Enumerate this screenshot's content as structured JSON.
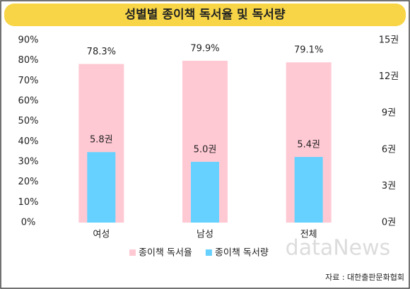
{
  "chart_data": {
    "type": "bar",
    "title": "성별별 종이책 독서율 및 독서량",
    "categories": [
      "여성",
      "남성",
      "전체"
    ],
    "series": [
      {
        "name": "종이책 독서율",
        "color": "#ffc9d4",
        "values": [
          78.3,
          79.9,
          79.1
        ],
        "value_labels": [
          "78.3%",
          "79.9%",
          "79.1%"
        ]
      },
      {
        "name": "종이책 독서량",
        "color": "#66d1ff",
        "axis": "y2",
        "values": [
          5.8,
          5.0,
          5.4
        ],
        "value_labels": [
          "5.8권",
          "5.0권",
          "5.4권"
        ]
      }
    ],
    "ylim": [
      0,
      90
    ],
    "yticks": [
      {
        "value": 0,
        "label": "0%"
      },
      {
        "value": 10,
        "label": "10%"
      },
      {
        "value": 20,
        "label": "20%"
      },
      {
        "value": 30,
        "label": "30%"
      },
      {
        "value": 40,
        "label": "40%"
      },
      {
        "value": 50,
        "label": "50%"
      },
      {
        "value": 60,
        "label": "60%"
      },
      {
        "value": 70,
        "label": "70%"
      },
      {
        "value": 80,
        "label": "80%"
      },
      {
        "value": 90,
        "label": "90%"
      }
    ],
    "y2lim": [
      0,
      15
    ],
    "y2ticks": [
      {
        "value": 0,
        "label": "0권"
      },
      {
        "value": 3,
        "label": "3권"
      },
      {
        "value": 6,
        "label": "6권"
      },
      {
        "value": 9,
        "label": "9권"
      },
      {
        "value": 12,
        "label": "12권"
      },
      {
        "value": 15,
        "label": "15권"
      }
    ],
    "legend": "bottom",
    "watermark": "dataNews",
    "source": "자료 : 대한출판문화협회"
  }
}
